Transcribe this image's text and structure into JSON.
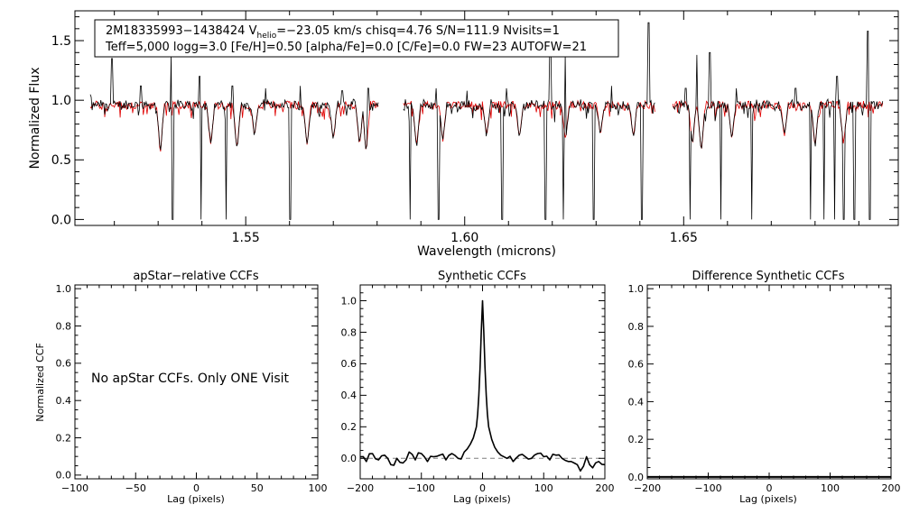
{
  "header": {
    "line1_a": "2M18335993−1438424  V",
    "line1_sub": "helio",
    "line1_b": "=−23.05 km/s  chisq=4.76  S/N=111.9  Nvisits=1",
    "line2": "Teff=5,000 logg=3.0 [Fe/H]=0.50 [alpha/Fe]=0.0 [C/Fe]=0.0 FW=23 AUTOFW=21"
  },
  "no_ccf_message": "No apStar CCFs.  Only ONE Visit",
  "colors": {
    "observed": "#000000",
    "model": "#e00000",
    "zero_line": "#7f7f7f"
  },
  "chart_data": [
    {
      "id": "spectrum",
      "type": "line",
      "title": "",
      "xlabel": "Wavelength (microns)",
      "ylabel": "Normalized Flux",
      "xlim": [
        1.511,
        1.699
      ],
      "ylim": [
        -0.05,
        1.75
      ],
      "xticks": [
        1.55,
        1.6,
        1.65
      ],
      "xtick_labels": [
        "1.55",
        "1.60",
        "1.65"
      ],
      "yticks": [
        0.0,
        0.5,
        1.0,
        1.5
      ],
      "ytick_labels": [
        "0.0",
        "0.5",
        "1.0",
        "1.5"
      ],
      "chips": [
        [
          1.5145,
          1.5805
        ],
        [
          1.586,
          1.6435
        ],
        [
          1.6475,
          1.6955
        ]
      ],
      "baseline": 0.96,
      "emission_spikes": [
        [
          1.5195,
          1.35
        ],
        [
          1.526,
          1.12
        ],
        [
          1.533,
          1.38
        ],
        [
          1.5395,
          1.2
        ],
        [
          1.547,
          1.12
        ],
        [
          1.5545,
          1.1
        ],
        [
          1.5625,
          1.12
        ],
        [
          1.572,
          1.08
        ],
        [
          1.578,
          1.1
        ],
        [
          1.5935,
          1.1
        ],
        [
          1.6005,
          1.08
        ],
        [
          1.6095,
          1.1
        ],
        [
          1.6195,
          1.48
        ],
        [
          1.623,
          1.38
        ],
        [
          1.6335,
          1.12
        ],
        [
          1.642,
          1.65
        ],
        [
          1.6505,
          1.1
        ],
        [
          1.653,
          1.38
        ],
        [
          1.656,
          1.4
        ],
        [
          1.662,
          1.1
        ],
        [
          1.6755,
          1.1
        ],
        [
          1.685,
          1.2
        ],
        [
          1.692,
          1.58
        ]
      ],
      "bad_pixels": [
        1.5333,
        1.5398,
        1.5455,
        1.5602,
        1.5875,
        1.594,
        1.6085,
        1.6185,
        1.6225,
        1.6295,
        1.6405,
        1.6515,
        1.6585,
        1.6655,
        1.679,
        1.682,
        1.6845,
        1.6865,
        1.689,
        1.6925
      ],
      "absorption_lines": [
        [
          1.5305,
          0.55
        ],
        [
          1.542,
          0.62
        ],
        [
          1.548,
          0.58
        ],
        [
          1.552,
          0.7
        ],
        [
          1.564,
          0.62
        ],
        [
          1.57,
          0.66
        ],
        [
          1.576,
          0.62
        ],
        [
          1.5775,
          0.55
        ],
        [
          1.589,
          0.6
        ],
        [
          1.595,
          0.66
        ],
        [
          1.605,
          0.7
        ],
        [
          1.6125,
          0.68
        ],
        [
          1.623,
          0.66
        ],
        [
          1.631,
          0.7
        ],
        [
          1.6385,
          0.68
        ],
        [
          1.652,
          0.62
        ],
        [
          1.654,
          0.56
        ],
        [
          1.661,
          0.66
        ],
        [
          1.673,
          0.7
        ],
        [
          1.68,
          0.6
        ],
        [
          1.6865,
          0.62
        ]
      ]
    },
    {
      "id": "ccf_apstar",
      "type": "line",
      "title": "apStar−relative CCFs",
      "xlabel": "Lag (pixels)",
      "ylabel": "Normalized CCF",
      "xlim": [
        -100,
        100
      ],
      "ylim": [
        -0.02,
        1.02
      ],
      "xticks": [
        -100,
        -50,
        0,
        50,
        100
      ],
      "xtick_labels": [
        "−100",
        "−50",
        "0",
        "50",
        "100"
      ],
      "yticks": [
        0.0,
        0.2,
        0.4,
        0.6,
        0.8,
        1.0
      ],
      "ytick_labels": [
        "0.0",
        "0.2",
        "0.4",
        "0.6",
        "0.8",
        "1.0"
      ],
      "series": []
    },
    {
      "id": "ccf_synthetic",
      "type": "line",
      "title": "Synthetic CCFs",
      "xlabel": "Lag (pixels)",
      "ylabel": "",
      "xlim": [
        -200,
        200
      ],
      "ylim": [
        -0.13,
        1.1
      ],
      "xticks": [
        -200,
        -100,
        0,
        100,
        200
      ],
      "xtick_labels": [
        "−200",
        "−100",
        "0",
        "100",
        "200"
      ],
      "yticks": [
        0.0,
        0.2,
        0.4,
        0.6,
        0.8,
        1.0
      ],
      "ytick_labels": [
        "0.0",
        "0.2",
        "0.4",
        "0.6",
        "0.8",
        "1.0"
      ],
      "zero_line": 0.0,
      "series": [
        {
          "x": [
            -200,
            -190,
            -180,
            -170,
            -160,
            -150,
            -140,
            -130,
            -120,
            -110,
            -100,
            -90,
            -80,
            -70,
            -60,
            -50,
            -40,
            -30,
            -25,
            -20,
            -15,
            -10,
            -8,
            -6,
            -4,
            -2,
            0,
            2,
            4,
            6,
            8,
            10,
            15,
            20,
            25,
            30,
            40,
            50,
            60,
            70,
            80,
            90,
            100,
            110,
            120,
            130,
            140,
            150,
            160,
            170,
            180,
            190,
            200
          ],
          "y": [
            0.01,
            -0.02,
            0.03,
            -0.01,
            0.02,
            -0.04,
            0.0,
            -0.03,
            0.04,
            -0.01,
            0.03,
            -0.02,
            0.01,
            0.02,
            -0.01,
            0.03,
            0.0,
            0.04,
            0.06,
            0.09,
            0.13,
            0.2,
            0.28,
            0.4,
            0.58,
            0.8,
            1.0,
            0.8,
            0.58,
            0.4,
            0.28,
            0.2,
            0.12,
            0.07,
            0.04,
            0.02,
            0.0,
            -0.02,
            0.02,
            0.01,
            0.0,
            0.03,
            0.01,
            -0.01,
            0.02,
            0.0,
            -0.02,
            -0.03,
            -0.08,
            0.01,
            -0.06,
            -0.02,
            -0.04
          ]
        }
      ]
    },
    {
      "id": "ccf_difference",
      "type": "line",
      "title": "Difference Synthetic CCFs",
      "xlabel": "Lag (pixels)",
      "ylabel": "",
      "xlim": [
        -200,
        200
      ],
      "ylim": [
        -0.01,
        1.02
      ],
      "xticks": [
        -200,
        -100,
        0,
        100,
        200
      ],
      "xtick_labels": [
        "−200",
        "−100",
        "0",
        "100",
        "200"
      ],
      "yticks": [
        0.0,
        0.2,
        0.4,
        0.6,
        0.8,
        1.0
      ],
      "ytick_labels": [
        "0.0",
        "0.2",
        "0.4",
        "0.6",
        "0.8",
        "1.0"
      ],
      "series": [
        {
          "x": [
            -200,
            200
          ],
          "y": [
            0.0,
            0.0
          ]
        }
      ]
    }
  ]
}
